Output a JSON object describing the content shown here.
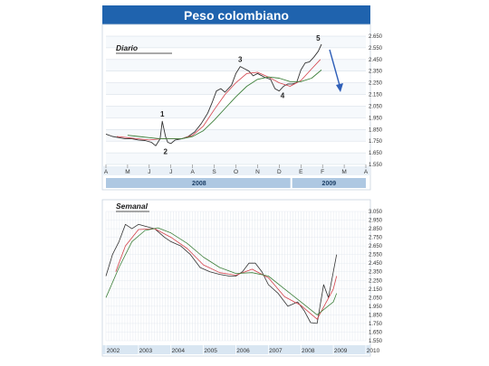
{
  "title": "Peso colombiano",
  "colors": {
    "header_blue": "#1f63ae",
    "band_blue": "#d9e6f2",
    "year_bar": "#aec8e2",
    "price_line": "#333333",
    "ma_short": "#d4414a",
    "ma_long": "#3d7f3a",
    "arrow": "#2f5fb8",
    "grid": "#c8d3de"
  },
  "chart_data": [
    {
      "type": "line",
      "subtitle": "Diario",
      "x_labels": [
        "A",
        "M",
        "J",
        "J",
        "A",
        "S",
        "O",
        "N",
        "D",
        "E",
        "F",
        "M",
        "A"
      ],
      "year_labels": [
        "2008",
        "2009"
      ],
      "y_ticks": [
        "2.650",
        "2.550",
        "2.450",
        "2.350",
        "2.250",
        "2.150",
        "2.050",
        "1.950",
        "1.850",
        "1.750",
        "1.650",
        "1.550"
      ],
      "ylim": [
        1550,
        2650
      ],
      "annotations": [
        "1",
        "2",
        "3",
        "4",
        "5"
      ],
      "series": [
        {
          "x": [
            0,
            0.3,
            0.6,
            0.9,
            1.2,
            1.5,
            1.8,
            2.1,
            2.3,
            2.5,
            2.6,
            2.75,
            2.85,
            3.0,
            3.2,
            3.5,
            3.8,
            4.1,
            4.4,
            4.7,
            4.9,
            5.1,
            5.3,
            5.5,
            5.8,
            6.0,
            6.2,
            6.4,
            6.6,
            6.8,
            7.0,
            7.3,
            7.6,
            7.8,
            8.0,
            8.2,
            8.4,
            8.6,
            8.8,
            9.0,
            9.2,
            9.4,
            9.6,
            9.8,
            9.95
          ],
          "values": [
            1810,
            1790,
            1780,
            1770,
            1770,
            1760,
            1755,
            1740,
            1710,
            1770,
            1920,
            1790,
            1740,
            1730,
            1760,
            1770,
            1790,
            1830,
            1900,
            1990,
            2080,
            2180,
            2200,
            2170,
            2230,
            2330,
            2390,
            2370,
            2350,
            2310,
            2330,
            2300,
            2280,
            2200,
            2180,
            2220,
            2240,
            2240,
            2250,
            2360,
            2420,
            2430,
            2470,
            2520,
            2580
          ]
        },
        {
          "x": [
            0.5,
            1.0,
            1.5,
            2.0,
            2.5,
            3.0,
            3.5,
            4.0,
            4.5,
            5.0,
            5.5,
            6.0,
            6.5,
            7.0,
            7.5,
            8.0,
            8.5,
            9.0,
            9.5,
            9.9
          ],
          "values": [
            1790,
            1780,
            1770,
            1760,
            1770,
            1770,
            1770,
            1800,
            1880,
            2020,
            2150,
            2250,
            2330,
            2340,
            2300,
            2250,
            2220,
            2270,
            2370,
            2450
          ]
        },
        {
          "x": [
            1.0,
            1.5,
            2.0,
            2.5,
            3.0,
            3.5,
            4.0,
            4.5,
            5.0,
            5.5,
            6.0,
            6.5,
            7.0,
            7.5,
            8.0,
            8.5,
            9.0,
            9.5,
            9.95
          ],
          "values": [
            1800,
            1790,
            1780,
            1770,
            1770,
            1770,
            1790,
            1840,
            1930,
            2030,
            2130,
            2220,
            2280,
            2300,
            2290,
            2260,
            2260,
            2290,
            2360
          ]
        }
      ]
    },
    {
      "type": "line",
      "subtitle": "Semanal",
      "x_labels": [
        "2002",
        "2003",
        "2004",
        "2005",
        "2006",
        "2007",
        "2008",
        "2009",
        "2010"
      ],
      "y_ticks": [
        "3.050",
        "2.950",
        "2.850",
        "2.750",
        "2.650",
        "2.550",
        "2.450",
        "2.350",
        "2.250",
        "2.150",
        "2.050",
        "1.950",
        "1.850",
        "1.750",
        "1.650",
        "1.550"
      ],
      "ylim": [
        1550,
        3050
      ],
      "series": [
        {
          "x": [
            2002.0,
            2002.2,
            2002.4,
            2002.6,
            2002.8,
            2003.0,
            2003.2,
            2003.5,
            2003.8,
            2004.0,
            2004.3,
            2004.6,
            2004.9,
            2005.2,
            2005.5,
            2005.8,
            2006.0,
            2006.2,
            2006.4,
            2006.6,
            2006.8,
            2007.0,
            2007.3,
            2007.6,
            2007.9,
            2008.1,
            2008.3,
            2008.5,
            2008.7,
            2008.85,
            2009.0,
            2009.1
          ],
          "values": [
            2300,
            2550,
            2700,
            2900,
            2850,
            2900,
            2880,
            2850,
            2750,
            2700,
            2650,
            2550,
            2400,
            2350,
            2320,
            2300,
            2300,
            2350,
            2450,
            2450,
            2350,
            2200,
            2100,
            1950,
            2000,
            1900,
            1760,
            1750,
            2200,
            2050,
            2350,
            2550
          ]
        },
        {
          "x": [
            2002.3,
            2002.6,
            2003.0,
            2003.5,
            2004.0,
            2004.5,
            2005.0,
            2005.5,
            2006.0,
            2006.5,
            2007.0,
            2007.5,
            2008.0,
            2008.5,
            2009.0,
            2009.1
          ],
          "values": [
            2350,
            2650,
            2840,
            2850,
            2750,
            2620,
            2430,
            2340,
            2310,
            2380,
            2280,
            2060,
            1960,
            1800,
            2150,
            2300
          ]
        },
        {
          "x": [
            2002.0,
            2002.4,
            2002.8,
            2003.2,
            2003.6,
            2004.0,
            2004.5,
            2005.0,
            2005.5,
            2006.0,
            2006.5,
            2007.0,
            2007.5,
            2008.0,
            2008.5,
            2009.0,
            2009.1
          ],
          "values": [
            2050,
            2400,
            2700,
            2830,
            2860,
            2800,
            2680,
            2520,
            2400,
            2330,
            2340,
            2300,
            2150,
            2000,
            1850,
            2000,
            2100
          ]
        }
      ]
    }
  ]
}
